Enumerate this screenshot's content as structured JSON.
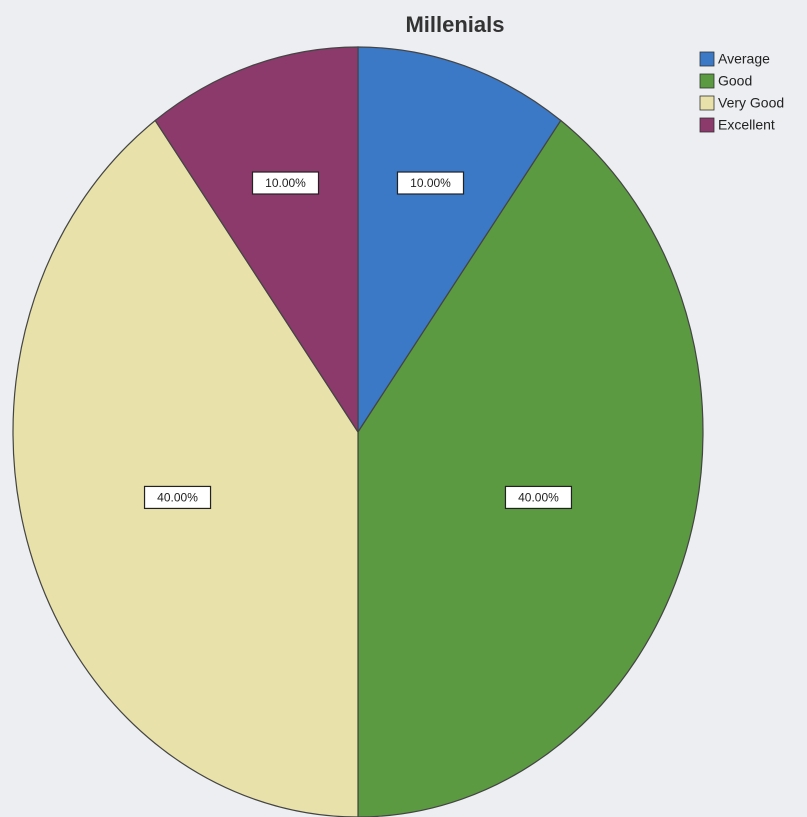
{
  "chart_data": {
    "type": "pie",
    "title": "Millenials",
    "categories": [
      "Average",
      "Good",
      "Very Good",
      "Excellent"
    ],
    "values": [
      10,
      40,
      40,
      10
    ],
    "value_labels": [
      "10.00%",
      "40.00%",
      "40.00%",
      "10.00%"
    ],
    "colors": [
      "#3b78c6",
      "#5b9a40",
      "#e8e1aa",
      "#8c3a6c"
    ],
    "legend": "top-right"
  }
}
